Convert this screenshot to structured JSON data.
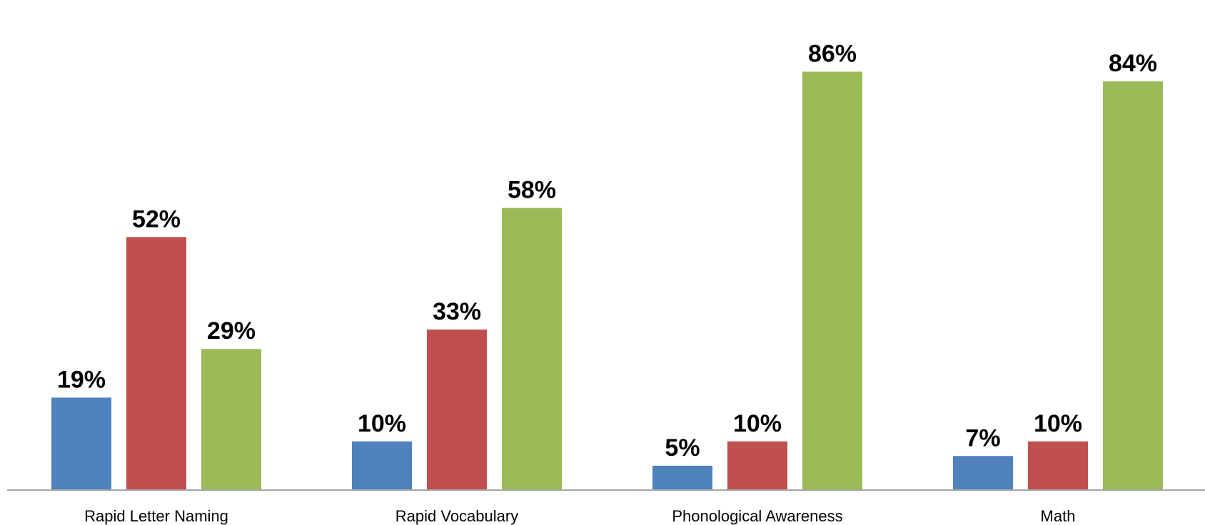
{
  "chart_data": {
    "type": "bar",
    "title": "",
    "xlabel": "",
    "ylabel": "",
    "categories": [
      "Rapid Letter Naming",
      "Rapid Vocabulary",
      "Phonological Awareness",
      "Math"
    ],
    "series": [
      {
        "color": "#4F81BD",
        "values": [
          19,
          10,
          5,
          7
        ],
        "labels": [
          "19%",
          "10%",
          "5%",
          "7%"
        ]
      },
      {
        "color": "#C0504D",
        "values": [
          52,
          33,
          10,
          10
        ],
        "labels": [
          "52%",
          "33%",
          "10%",
          "10%"
        ]
      },
      {
        "color": "#9BBB59",
        "values": [
          29,
          58,
          86,
          84
        ],
        "labels": [
          "29%",
          "58%",
          "86%",
          "84%"
        ]
      }
    ],
    "ylim": [
      0,
      86
    ],
    "value_format": "percent",
    "legend": "none",
    "grid": false,
    "axis_color": "#A6A6A6"
  }
}
